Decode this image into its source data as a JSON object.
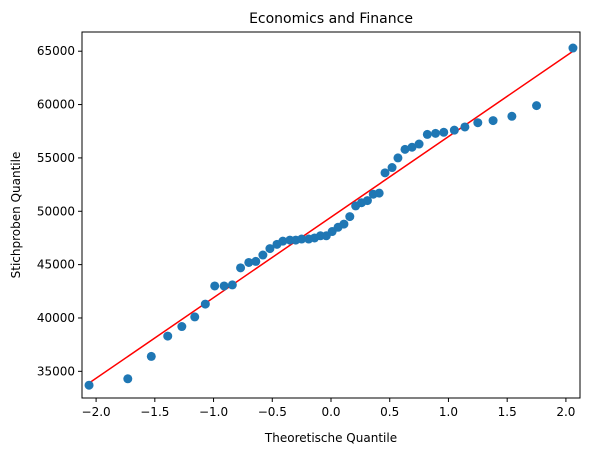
{
  "chart_data": {
    "type": "scatter",
    "title": "Economics and Finance",
    "xlabel": "Theoretische Quantile",
    "ylabel": "Stichproben Quantile",
    "xlim": [
      -2.12,
      2.12
    ],
    "ylim": [
      32500,
      66800
    ],
    "x_ticks": [
      {
        "value": -2.0,
        "label": "−2.0"
      },
      {
        "value": -1.5,
        "label": "−1.5"
      },
      {
        "value": -1.0,
        "label": "−1.0"
      },
      {
        "value": -0.5,
        "label": "−0.5"
      },
      {
        "value": 0.0,
        "label": "0.0"
      },
      {
        "value": 0.5,
        "label": "0.5"
      },
      {
        "value": 1.0,
        "label": "1.0"
      },
      {
        "value": 1.5,
        "label": "1.5"
      },
      {
        "value": 2.0,
        "label": "2.0"
      }
    ],
    "y_ticks": [
      {
        "value": 35000,
        "label": "35000"
      },
      {
        "value": 40000,
        "label": "40000"
      },
      {
        "value": 45000,
        "label": "45000"
      },
      {
        "value": 50000,
        "label": "50000"
      },
      {
        "value": 55000,
        "label": "55000"
      },
      {
        "value": 60000,
        "label": "60000"
      },
      {
        "value": 65000,
        "label": "65000"
      }
    ],
    "grid": false,
    "marker_color": "#1f77b4",
    "line_color": "#ff0000",
    "reference_line": {
      "x": [
        -2.06,
        2.06
      ],
      "y": [
        33900,
        65000
      ]
    },
    "points": [
      {
        "x": -2.06,
        "y": 33700
      },
      {
        "x": -1.73,
        "y": 34300
      },
      {
        "x": -1.53,
        "y": 36400
      },
      {
        "x": -1.39,
        "y": 38300
      },
      {
        "x": -1.27,
        "y": 39200
      },
      {
        "x": -1.16,
        "y": 40100
      },
      {
        "x": -1.07,
        "y": 41300
      },
      {
        "x": -0.99,
        "y": 43000
      },
      {
        "x": -0.91,
        "y": 43000
      },
      {
        "x": -0.84,
        "y": 43100
      },
      {
        "x": -0.77,
        "y": 44700
      },
      {
        "x": -0.7,
        "y": 45200
      },
      {
        "x": -0.64,
        "y": 45300
      },
      {
        "x": -0.58,
        "y": 45900
      },
      {
        "x": -0.52,
        "y": 46500
      },
      {
        "x": -0.46,
        "y": 46900
      },
      {
        "x": -0.41,
        "y": 47200
      },
      {
        "x": -0.35,
        "y": 47300
      },
      {
        "x": -0.3,
        "y": 47300
      },
      {
        "x": -0.25,
        "y": 47400
      },
      {
        "x": -0.19,
        "y": 47400
      },
      {
        "x": -0.14,
        "y": 47500
      },
      {
        "x": -0.09,
        "y": 47700
      },
      {
        "x": -0.04,
        "y": 47700
      },
      {
        "x": 0.01,
        "y": 48100
      },
      {
        "x": 0.06,
        "y": 48500
      },
      {
        "x": 0.11,
        "y": 48800
      },
      {
        "x": 0.16,
        "y": 49500
      },
      {
        "x": 0.21,
        "y": 50500
      },
      {
        "x": 0.26,
        "y": 50800
      },
      {
        "x": 0.31,
        "y": 51000
      },
      {
        "x": 0.36,
        "y": 51600
      },
      {
        "x": 0.41,
        "y": 51700
      },
      {
        "x": 0.46,
        "y": 53600
      },
      {
        "x": 0.52,
        "y": 54100
      },
      {
        "x": 0.57,
        "y": 55000
      },
      {
        "x": 0.63,
        "y": 55800
      },
      {
        "x": 0.69,
        "y": 56000
      },
      {
        "x": 0.75,
        "y": 56300
      },
      {
        "x": 0.82,
        "y": 57200
      },
      {
        "x": 0.89,
        "y": 57300
      },
      {
        "x": 0.96,
        "y": 57400
      },
      {
        "x": 1.05,
        "y": 57600
      },
      {
        "x": 1.14,
        "y": 57900
      },
      {
        "x": 1.25,
        "y": 58300
      },
      {
        "x": 1.38,
        "y": 58500
      },
      {
        "x": 1.54,
        "y": 58900
      },
      {
        "x": 1.75,
        "y": 59900
      },
      {
        "x": 2.06,
        "y": 65300
      }
    ]
  }
}
